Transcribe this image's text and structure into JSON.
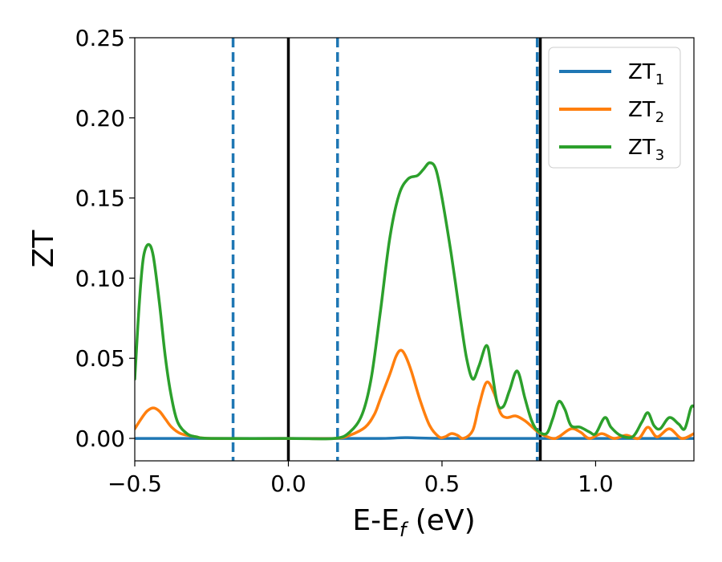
{
  "chart_data": {
    "type": "line",
    "xlabel": "E-E",
    "xlabel_sub": "f",
    "xlabel_unit": " (eV)",
    "ylabel": "ZT",
    "xlim": [
      -0.5,
      1.32
    ],
    "ylim": [
      -0.014,
      0.25
    ],
    "xticks": [
      {
        "value": -0.5,
        "label": "−0.5"
      },
      {
        "value": 0.0,
        "label": "0.0"
      },
      {
        "value": 0.5,
        "label": "0.5"
      },
      {
        "value": 1.0,
        "label": "1.0"
      }
    ],
    "yticks": [
      {
        "value": 0.0,
        "label": "0.00"
      },
      {
        "value": 0.05,
        "label": "0.05"
      },
      {
        "value": 0.1,
        "label": "0.10"
      },
      {
        "value": 0.15,
        "label": "0.15"
      },
      {
        "value": 0.2,
        "label": "0.20"
      },
      {
        "value": 0.25,
        "label": "0.25"
      }
    ],
    "vlines_solid": [
      0.0,
      0.82
    ],
    "vlines_dashed": [
      -0.18,
      0.16,
      0.81
    ],
    "vline_solid_color": "#000000",
    "vline_dashed_color": "#1f77b4",
    "legend_position": "top-right",
    "grid": false,
    "series": [
      {
        "name": "ZT",
        "name_sub": "1",
        "color": "#1f77b4",
        "points": [
          [
            -0.5,
            0.0
          ],
          [
            0.0,
            0.0
          ],
          [
            0.3,
            0.0
          ],
          [
            0.38,
            0.0005
          ],
          [
            0.5,
            0.0
          ],
          [
            0.8,
            0.0
          ],
          [
            1.0,
            0.0
          ],
          [
            1.32,
            0.0
          ]
        ]
      },
      {
        "name": "ZT",
        "name_sub": "2",
        "color": "#ff7f0e",
        "points": [
          [
            -0.5,
            0.006
          ],
          [
            -0.48,
            0.012
          ],
          [
            -0.46,
            0.017
          ],
          [
            -0.44,
            0.019
          ],
          [
            -0.42,
            0.017
          ],
          [
            -0.4,
            0.012
          ],
          [
            -0.38,
            0.007
          ],
          [
            -0.35,
            0.003
          ],
          [
            -0.3,
            0.001
          ],
          [
            -0.25,
            0.0
          ],
          [
            0.0,
            0.0
          ],
          [
            0.15,
            0.0
          ],
          [
            0.2,
            0.002
          ],
          [
            0.25,
            0.007
          ],
          [
            0.28,
            0.015
          ],
          [
            0.3,
            0.025
          ],
          [
            0.33,
            0.04
          ],
          [
            0.35,
            0.051
          ],
          [
            0.365,
            0.055
          ],
          [
            0.38,
            0.052
          ],
          [
            0.4,
            0.042
          ],
          [
            0.43,
            0.023
          ],
          [
            0.46,
            0.008
          ],
          [
            0.49,
            0.001
          ],
          [
            0.51,
            0.001
          ],
          [
            0.53,
            0.003
          ],
          [
            0.55,
            0.002
          ],
          [
            0.57,
            0.0
          ],
          [
            0.6,
            0.005
          ],
          [
            0.62,
            0.02
          ],
          [
            0.645,
            0.035
          ],
          [
            0.67,
            0.028
          ],
          [
            0.69,
            0.016
          ],
          [
            0.71,
            0.013
          ],
          [
            0.74,
            0.014
          ],
          [
            0.77,
            0.011
          ],
          [
            0.8,
            0.006
          ],
          [
            0.82,
            0.003
          ],
          [
            0.86,
            0.0
          ],
          [
            0.88,
            0.001
          ],
          [
            0.92,
            0.006
          ],
          [
            0.95,
            0.004
          ],
          [
            0.98,
            0.0
          ],
          [
            1.02,
            0.003
          ],
          [
            1.06,
            0.0
          ],
          [
            1.1,
            0.002
          ],
          [
            1.14,
            0.0
          ],
          [
            1.17,
            0.007
          ],
          [
            1.2,
            0.001
          ],
          [
            1.24,
            0.006
          ],
          [
            1.28,
            0.0
          ],
          [
            1.32,
            0.003
          ]
        ]
      },
      {
        "name": "ZT",
        "name_sub": "3",
        "color": "#2ca02c",
        "points": [
          [
            -0.5,
            0.037
          ],
          [
            -0.49,
            0.07
          ],
          [
            -0.48,
            0.098
          ],
          [
            -0.47,
            0.115
          ],
          [
            -0.455,
            0.121
          ],
          [
            -0.44,
            0.114
          ],
          [
            -0.42,
            0.085
          ],
          [
            -0.4,
            0.05
          ],
          [
            -0.38,
            0.025
          ],
          [
            -0.36,
            0.01
          ],
          [
            -0.33,
            0.003
          ],
          [
            -0.3,
            0.001
          ],
          [
            -0.25,
            0.0
          ],
          [
            0.0,
            0.0
          ],
          [
            0.15,
            0.0
          ],
          [
            0.2,
            0.004
          ],
          [
            0.24,
            0.015
          ],
          [
            0.27,
            0.038
          ],
          [
            0.3,
            0.08
          ],
          [
            0.33,
            0.125
          ],
          [
            0.36,
            0.152
          ],
          [
            0.39,
            0.162
          ],
          [
            0.42,
            0.164
          ],
          [
            0.44,
            0.168
          ],
          [
            0.46,
            0.172
          ],
          [
            0.48,
            0.168
          ],
          [
            0.5,
            0.15
          ],
          [
            0.53,
            0.115
          ],
          [
            0.56,
            0.075
          ],
          [
            0.58,
            0.05
          ],
          [
            0.6,
            0.037
          ],
          [
            0.62,
            0.045
          ],
          [
            0.645,
            0.058
          ],
          [
            0.66,
            0.045
          ],
          [
            0.68,
            0.022
          ],
          [
            0.7,
            0.02
          ],
          [
            0.72,
            0.03
          ],
          [
            0.745,
            0.042
          ],
          [
            0.77,
            0.025
          ],
          [
            0.79,
            0.012
          ],
          [
            0.81,
            0.005
          ],
          [
            0.84,
            0.003
          ],
          [
            0.86,
            0.012
          ],
          [
            0.88,
            0.023
          ],
          [
            0.9,
            0.018
          ],
          [
            0.92,
            0.008
          ],
          [
            0.95,
            0.007
          ],
          [
            0.98,
            0.004
          ],
          [
            1.0,
            0.003
          ],
          [
            1.03,
            0.013
          ],
          [
            1.05,
            0.007
          ],
          [
            1.08,
            0.002
          ],
          [
            1.12,
            0.001
          ],
          [
            1.15,
            0.01
          ],
          [
            1.17,
            0.016
          ],
          [
            1.19,
            0.008
          ],
          [
            1.21,
            0.006
          ],
          [
            1.24,
            0.013
          ],
          [
            1.27,
            0.009
          ],
          [
            1.29,
            0.006
          ],
          [
            1.31,
            0.019
          ],
          [
            1.32,
            0.02
          ]
        ]
      }
    ]
  }
}
